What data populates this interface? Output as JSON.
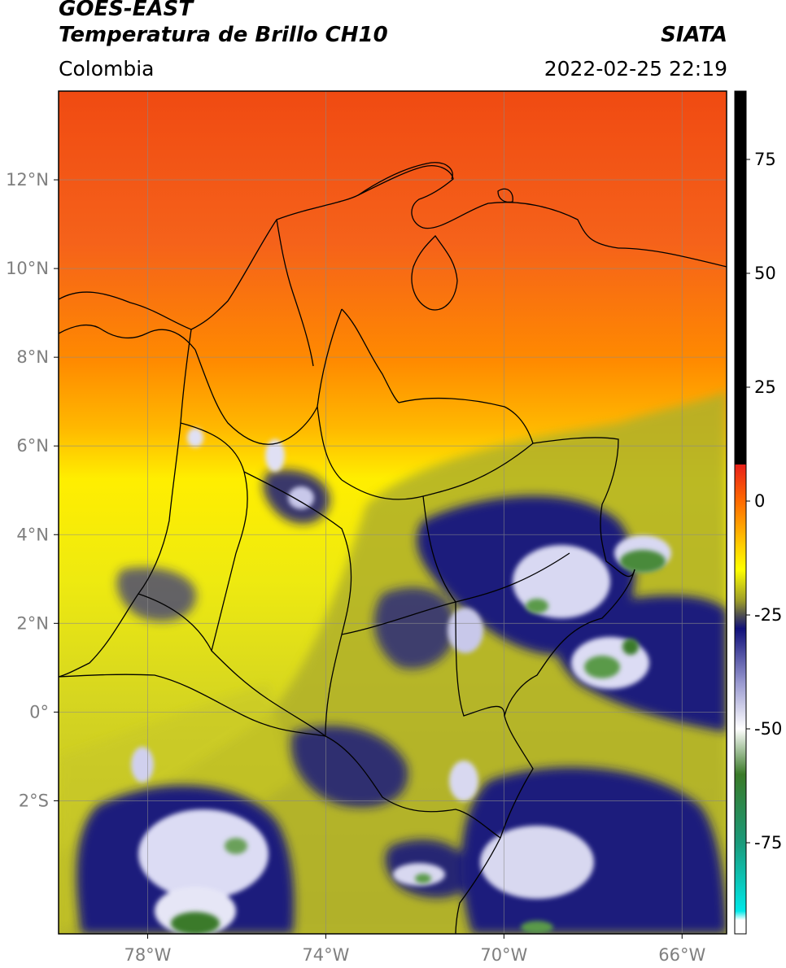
{
  "header": {
    "satellite": "GOES-EAST",
    "product": "Temperatura de Brillo CH10",
    "agency": "SIATA",
    "region": "Colombia",
    "datetime": "2022-02-25 22:19"
  },
  "map": {
    "lon_range": [
      -80,
      -65
    ],
    "lat_range": [
      -5.0,
      14.0
    ],
    "lon_ticks": [
      {
        "value": -78,
        "label": "78°W"
      },
      {
        "value": -74,
        "label": "74°W"
      },
      {
        "value": -70,
        "label": "70°W"
      },
      {
        "value": -66,
        "label": "66°W"
      }
    ],
    "lat_ticks": [
      {
        "value": 12,
        "label": "12°N"
      },
      {
        "value": 10,
        "label": "10°N"
      },
      {
        "value": 8,
        "label": "8°N"
      },
      {
        "value": 6,
        "label": "6°N"
      },
      {
        "value": 4,
        "label": "4°N"
      },
      {
        "value": 2,
        "label": "2°N"
      },
      {
        "value": 0,
        "label": "0°"
      },
      {
        "value": -2,
        "label": "2°S"
      }
    ],
    "grid": true
  },
  "colorbar": {
    "range": [
      -95,
      90
    ],
    "ticks": [
      {
        "value": 75,
        "label": "75"
      },
      {
        "value": 50,
        "label": "50"
      },
      {
        "value": 25,
        "label": "25"
      },
      {
        "value": 0,
        "label": "0"
      },
      {
        "value": -25,
        "label": "-25"
      },
      {
        "value": -50,
        "label": "-50"
      },
      {
        "value": -75,
        "label": "-75"
      }
    ],
    "stops": [
      {
        "value": 90,
        "color": "#000000"
      },
      {
        "value": 8,
        "color": "#000000"
      },
      {
        "value": 8,
        "color": "#e8201a"
      },
      {
        "value": 0,
        "color": "#ff6a00"
      },
      {
        "value": -10,
        "color": "#ffd000"
      },
      {
        "value": -15,
        "color": "#ffff00"
      },
      {
        "value": -22,
        "color": "#9a9a2a"
      },
      {
        "value": -25,
        "color": "#505050"
      },
      {
        "value": -28,
        "color": "#10107a"
      },
      {
        "value": -40,
        "color": "#9a9ad0"
      },
      {
        "value": -50,
        "color": "#ffffff"
      },
      {
        "value": -60,
        "color": "#3a7a28"
      },
      {
        "value": -75,
        "color": "#1a9a7a"
      },
      {
        "value": -90,
        "color": "#00e8e8"
      },
      {
        "value": -92,
        "color": "#ffffff"
      },
      {
        "value": -95,
        "color": "#ffffff"
      }
    ]
  },
  "colors": {
    "warm_top": "#f25214",
    "warm_mid": "#ff8c00",
    "yellow": "#ffe600",
    "olive": "#b5b52a",
    "deep_blue": "#1a1a78",
    "pale": "#d8d8ee",
    "green": "#4a8a3a"
  }
}
